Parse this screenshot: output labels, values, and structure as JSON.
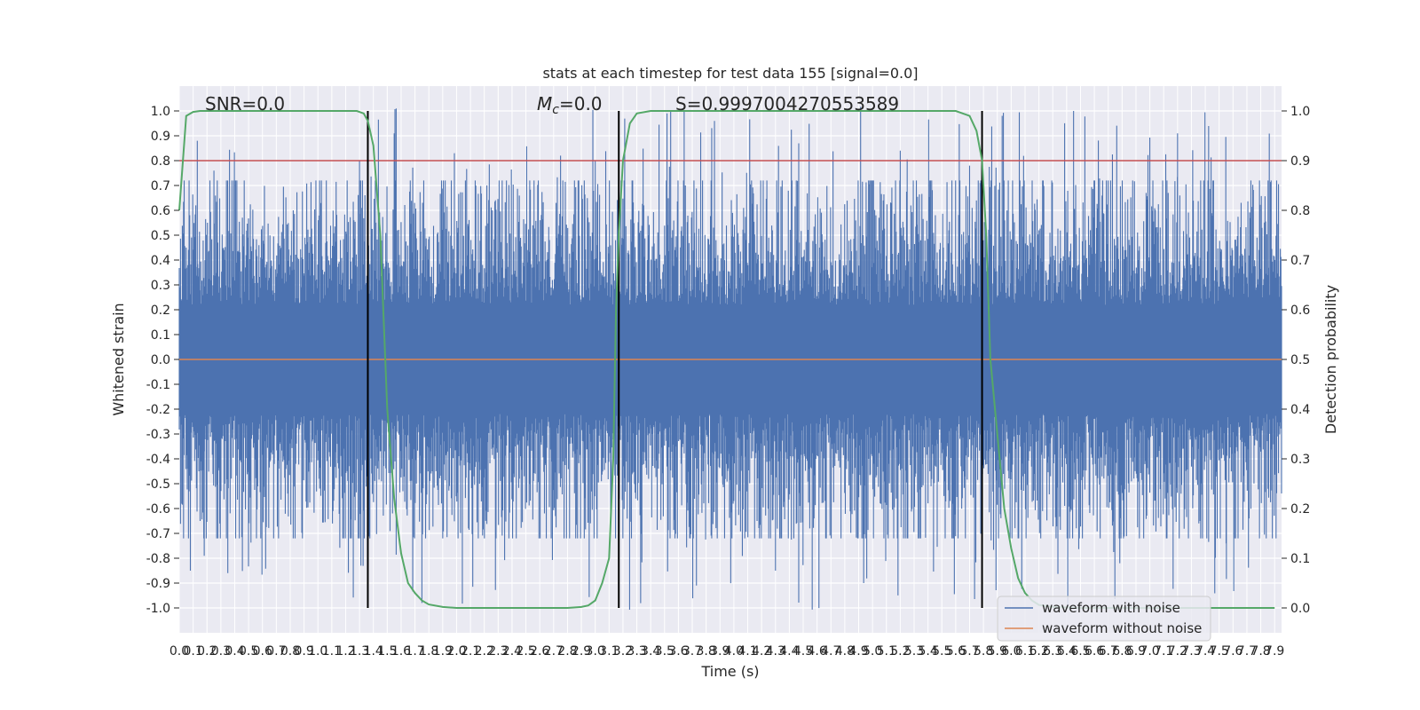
{
  "chart_data": {
    "type": "line",
    "title": "stats at each timestep for test data 155 [signal=0.0]",
    "xlabel": "Time (s)",
    "ylabel": "Whitened strain",
    "y2label": "Detection probability",
    "xlim": [
      0.0,
      7.95
    ],
    "ylim": [
      -1.1,
      1.1
    ],
    "y2lim": [
      -0.05,
      1.05
    ],
    "x_ticks": [
      0.0,
      0.1,
      0.2,
      0.3,
      0.4,
      0.5,
      0.6,
      0.7,
      0.8,
      0.9,
      1.0,
      1.1,
      1.2,
      1.3,
      1.4,
      1.5,
      1.6,
      1.7,
      1.8,
      1.9,
      2.0,
      2.1,
      2.2,
      2.3,
      2.4,
      2.5,
      2.6,
      2.7,
      2.8,
      2.9,
      3.0,
      3.1,
      3.2,
      3.3,
      3.4,
      3.5,
      3.6,
      3.7,
      3.8,
      3.9,
      4.0,
      4.1,
      4.2,
      4.3,
      4.4,
      4.5,
      4.6,
      4.7,
      4.8,
      4.9,
      5.0,
      5.1,
      5.2,
      5.3,
      5.4,
      5.5,
      5.6,
      5.7,
      5.8,
      5.9,
      6.0,
      6.1,
      6.2,
      6.3,
      6.4,
      6.5,
      6.6,
      6.7,
      6.8,
      6.9,
      7.0,
      7.1,
      7.2,
      7.3,
      7.4,
      7.5,
      7.6,
      7.7,
      7.8,
      7.9
    ],
    "y_ticks": [
      -1.0,
      -0.9,
      -0.8,
      -0.7,
      -0.6,
      -0.5,
      -0.4,
      -0.3,
      -0.2,
      -0.1,
      0.0,
      0.1,
      0.2,
      0.3,
      0.4,
      0.5,
      0.6,
      0.7,
      0.8,
      0.9,
      1.0
    ],
    "y2_ticks": [
      0.0,
      0.1,
      0.2,
      0.3,
      0.4,
      0.5,
      0.6,
      0.7,
      0.8,
      0.9,
      1.0
    ],
    "grid": true,
    "legend_position": "lower-right",
    "annotations": {
      "snr": "SNR=0.0",
      "mc": "=0.0",
      "mc_symbol": "M",
      "mc_subscript": "c",
      "s": "S=0.9997004270553589"
    },
    "threshold_line": {
      "y": 0.8,
      "color": "#c44e52"
    },
    "vertical_markers": [
      1.36,
      3.17,
      5.79
    ],
    "series": [
      {
        "name": "waveform with noise",
        "color": "#4c72b0",
        "description": "whitened noise, envelope ~±0.4 with spikes up to ±1.0",
        "peaks": [
          {
            "x": 0.05,
            "v": 0.45
          },
          {
            "x": 0.08,
            "v": -0.85
          },
          {
            "x": 0.13,
            "v": 0.88
          },
          {
            "x": 0.18,
            "v": -0.79
          },
          {
            "x": 0.25,
            "v": 0.76
          },
          {
            "x": 0.35,
            "v": -0.86
          },
          {
            "x": 1.3,
            "v": 0.8
          },
          {
            "x": 1.31,
            "v": -0.83
          },
          {
            "x": 1.55,
            "v": 0.91
          },
          {
            "x": 1.75,
            "v": -0.98
          },
          {
            "x": 2.75,
            "v": 0.82
          },
          {
            "x": 3.0,
            "v": 0.8
          },
          {
            "x": 3.86,
            "v": 0.96
          },
          {
            "x": 3.73,
            "v": -0.91
          },
          {
            "x": 4.3,
            "v": -0.85
          },
          {
            "x": 5.2,
            "v": 0.84
          },
          {
            "x": 5.7,
            "v": 0.78
          },
          {
            "x": 6.45,
            "v": 1.0
          },
          {
            "x": 7.2,
            "v": 0.91
          },
          {
            "x": 7.55,
            "v": -0.74
          }
        ]
      },
      {
        "name": "waveform without noise",
        "color": "#dd8452",
        "values_description": "zero everywhere (signal=0.0)",
        "x": [
          0.0,
          7.95
        ],
        "y": [
          0.0,
          0.0
        ]
      },
      {
        "name": "detection probability",
        "color": "#55a868",
        "axis": "y2",
        "x": [
          0.0,
          0.05,
          0.1,
          0.15,
          0.2,
          1.2,
          1.28,
          1.33,
          1.36,
          1.4,
          1.45,
          1.5,
          1.55,
          1.6,
          1.65,
          1.7,
          1.75,
          1.8,
          1.9,
          2.0,
          2.2,
          2.5,
          2.8,
          2.9,
          2.95,
          3.0,
          3.05,
          3.1,
          3.13,
          3.15,
          3.17,
          3.2,
          3.25,
          3.3,
          3.4,
          5.6,
          5.7,
          5.75,
          5.79,
          5.82,
          5.85,
          5.9,
          5.95,
          6.0,
          6.05,
          6.1,
          6.15,
          6.2,
          6.3,
          6.5,
          7.9
        ],
        "y": [
          0.8,
          0.99,
          0.998,
          1.0,
          1.0,
          1.0,
          1.0,
          0.995,
          0.98,
          0.93,
          0.75,
          0.4,
          0.22,
          0.11,
          0.05,
          0.03,
          0.015,
          0.007,
          0.002,
          0.0,
          0.0,
          0.0,
          0.0,
          0.002,
          0.005,
          0.015,
          0.05,
          0.1,
          0.3,
          0.6,
          0.75,
          0.9,
          0.975,
          0.995,
          1.0,
          1.0,
          0.99,
          0.96,
          0.9,
          0.75,
          0.5,
          0.35,
          0.2,
          0.12,
          0.06,
          0.03,
          0.015,
          0.006,
          0.002,
          0.0,
          0.0
        ]
      }
    ]
  }
}
